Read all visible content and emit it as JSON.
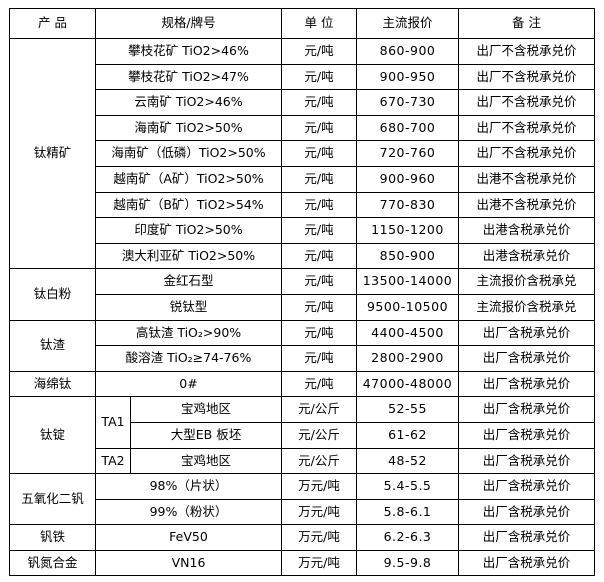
{
  "colors": {
    "border": "#000000",
    "text": "#000000",
    "background": "#ffffff"
  },
  "table": {
    "headers": {
      "product": "产  品",
      "spec": "规格/牌号",
      "unit": "单  位",
      "price": "主流报价",
      "remark": "备  注"
    },
    "groups": [
      {
        "product": "钛精矿",
        "rows": [
          {
            "spec": "攀枝花矿 TiO2>46%",
            "unit": "元/吨",
            "price": "860-900",
            "remark": "出厂不含税承兑价"
          },
          {
            "spec": "攀枝花矿 TiO2>47%",
            "unit": "元/吨",
            "price": "900-950",
            "remark": "出厂不含税承兑价"
          },
          {
            "spec": "云南矿 TiO2>46%",
            "unit": "元/吨",
            "price": "670-730",
            "remark": "出厂不含税承兑价"
          },
          {
            "spec": "海南矿 TiO2>50%",
            "unit": "元/吨",
            "price": "680-700",
            "remark": "出厂不含税承兑价"
          },
          {
            "spec": "海南矿（低磷）TiO2>50%",
            "unit": "元/吨",
            "price": "720-760",
            "remark": "出厂不含税承兑价"
          },
          {
            "spec": "越南矿（A矿）TiO2>50%",
            "unit": "元/吨",
            "price": "900-960",
            "remark": "出港不含税承兑价"
          },
          {
            "spec": "越南矿（B矿）TiO2>54%",
            "unit": "元/吨",
            "price": "770-830",
            "remark": "出港不含税承兑价"
          },
          {
            "spec": "印度矿 TiO2>50%",
            "unit": "元/吨",
            "price": "1150-1200",
            "remark": "出港含税承兑价"
          },
          {
            "spec": "澳大利亚矿 TiO2>50%",
            "unit": "元/吨",
            "price": "850-900",
            "remark": "出港含税承兑价"
          }
        ]
      },
      {
        "product": "钛白粉",
        "rows": [
          {
            "spec": "金红石型",
            "unit": "元/吨",
            "price": "13500-14000",
            "remark": "主流报价含税承兑"
          },
          {
            "spec": "锐钛型",
            "unit": "元/吨",
            "price": "9500-10500",
            "remark": "主流报价含税承兑"
          }
        ]
      },
      {
        "product": "钛渣",
        "rows": [
          {
            "spec": "高钛渣 TiO₂>90%",
            "unit": "元/吨",
            "price": "4400-4500",
            "remark": "出厂含税承兑价"
          },
          {
            "spec": "酸溶渣 TiO₂≥74-76%",
            "unit": "元/吨",
            "price": "2800-2900",
            "remark": "出厂含税承兑价"
          }
        ]
      },
      {
        "product": "海绵钛",
        "rows": [
          {
            "spec": "0#",
            "unit": "元/吨",
            "price": "47000-48000",
            "remark": "出厂含税承兑价"
          }
        ]
      },
      {
        "product": "钛锭",
        "rows": [
          {
            "grade": "TA1",
            "grade_rowspan": 2,
            "spec": "宝鸡地区",
            "unit": "元/公斤",
            "price": "52-55",
            "remark": "出厂含税承兑价"
          },
          {
            "spec": "大型EB 板坯",
            "unit": "元/公斤",
            "price": "61-62",
            "remark": "出厂含税承兑价"
          },
          {
            "grade": "TA2",
            "grade_rowspan": 1,
            "spec": "宝鸡地区",
            "unit": "元/公斤",
            "price": "48-52",
            "remark": "出厂含税承兑价"
          }
        ]
      },
      {
        "product": "五氧化二钒",
        "rows": [
          {
            "spec": "98%（片状）",
            "unit": "万元/吨",
            "price": "5.4-5.5",
            "remark": "出厂含税承兑价"
          },
          {
            "spec": "99%（粉状）",
            "unit": "万元/吨",
            "price": "5.8-6.1",
            "remark": "出厂含税承兑价"
          }
        ]
      },
      {
        "product": "钒铁",
        "rows": [
          {
            "spec": "FeV50",
            "unit": "万元/吨",
            "price": "6.2-6.3",
            "remark": "出厂含税承兑价"
          }
        ]
      },
      {
        "product": "钒氮合金",
        "rows": [
          {
            "spec": "VN16",
            "unit": "万元/吨",
            "price": "9.5-9.8",
            "remark": "出厂含税承兑价"
          }
        ]
      }
    ]
  }
}
